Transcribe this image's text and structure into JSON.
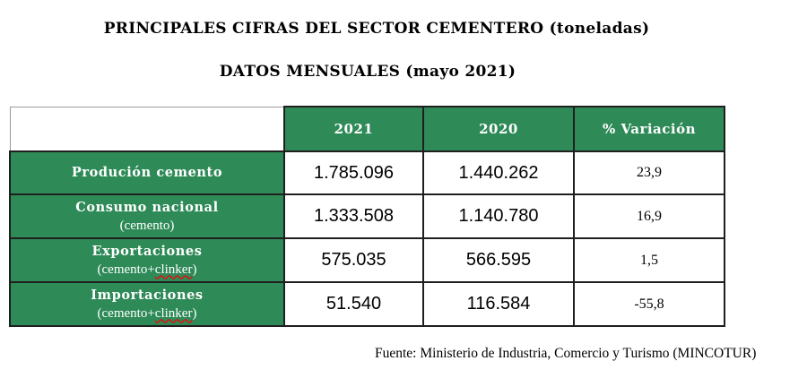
{
  "title": "PRINCIPALES CIFRAS DEL SECTOR CEMENTERO (toneladas)",
  "subtitle": "DATOS MENSUALES (mayo 2021)",
  "table": {
    "headers": [
      "2021",
      "2020",
      "% Variación"
    ],
    "rows": [
      {
        "label": "Produción cemento",
        "sub_label": "",
        "y2021": "1.785.096",
        "y2020": "1.440.262",
        "variation": "23,9"
      },
      {
        "label": "Consumo nacional",
        "sub_label": "(cemento)",
        "y2021": "1.333.508",
        "y2020": "1.140.780",
        "variation": "16,9"
      },
      {
        "label": "Exportaciones",
        "sub_label_pre": "(cemento+",
        "sub_label_wavy": "clinker",
        "sub_label_post": ")",
        "y2021": "575.035",
        "y2020": "566.595",
        "variation": "1,5"
      },
      {
        "label": "Importaciones",
        "sub_label_pre": "(cemento+",
        "sub_label_wavy": "clinker",
        "sub_label_post": ")",
        "y2021": "51.540",
        "y2020": "116.584",
        "variation": "-55,8"
      }
    ]
  },
  "source": "Fuente: Ministerio de Industria, Comercio y Turismo (MINCOTUR)",
  "colors": {
    "header_green": "#2e8a57",
    "border": "#1f1f1f",
    "text": "#000000",
    "header_text": "#ffffff"
  }
}
